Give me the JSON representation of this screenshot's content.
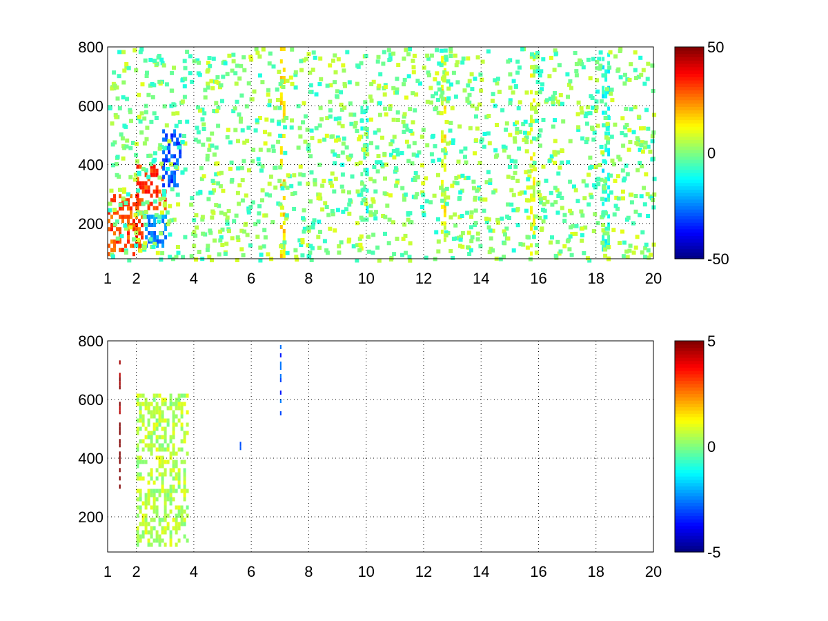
{
  "chart_data": [
    {
      "type": "heatmap",
      "xlim": [
        1,
        20
      ],
      "ylim": [
        80,
        800
      ],
      "xticks": [
        1,
        2,
        4,
        6,
        8,
        10,
        12,
        14,
        16,
        18,
        20
      ],
      "yticks": [
        200,
        400,
        600,
        800
      ],
      "grid": true,
      "colormap": "jet",
      "colorbar": {
        "min": -50,
        "max": 50,
        "ticks": [
          -50,
          0,
          50
        ]
      },
      "features": [
        {
          "x": [
            1.0,
            2.2
          ],
          "y": [
            100,
            300
          ],
          "value": 30
        },
        {
          "x": [
            2.0,
            3.0
          ],
          "y": [
            250,
            400
          ],
          "value": 32
        },
        {
          "x": [
            2.9,
            3.5
          ],
          "y": [
            330,
            520
          ],
          "value": -30
        },
        {
          "x": [
            2.3,
            3.0
          ],
          "y": [
            120,
            230
          ],
          "value": -25
        },
        {
          "x": [
            7.0,
            7.1
          ],
          "y": [
            80,
            800
          ],
          "value": 15
        },
        {
          "x": [
            18.2,
            18.4
          ],
          "y": [
            80,
            780
          ],
          "value": -10
        },
        {
          "x": [
            12.6,
            12.7
          ],
          "y": [
            150,
            770
          ],
          "value": 12
        },
        {
          "x": [
            15.7,
            15.8
          ],
          "y": [
            80,
            780
          ],
          "value": 10
        },
        {
          "x": [
            9.8,
            10.0
          ],
          "y": [
            200,
            600
          ],
          "value": -8
        }
      ]
    },
    {
      "type": "heatmap",
      "xlim": [
        1,
        20
      ],
      "ylim": [
        80,
        800
      ],
      "xticks": [
        1,
        2,
        4,
        6,
        8,
        10,
        12,
        14,
        16,
        18,
        20
      ],
      "yticks": [
        200,
        400,
        600,
        800
      ],
      "grid": true,
      "colormap": "jet",
      "colorbar": {
        "min": -5,
        "max": 5,
        "ticks": [
          -5,
          0,
          5
        ]
      },
      "features": [
        {
          "x": [
            1.4,
            1.45
          ],
          "y": [
            280,
            790
          ],
          "value": 5
        },
        {
          "x": [
            2.0,
            3.8
          ],
          "y": [
            100,
            620
          ],
          "value": 0.5
        },
        {
          "x": [
            7.0,
            7.05
          ],
          "y": [
            500,
            800
          ],
          "value": -3
        },
        {
          "x": [
            5.6,
            5.65
          ],
          "y": [
            430,
            470
          ],
          "value": -3
        }
      ]
    }
  ]
}
